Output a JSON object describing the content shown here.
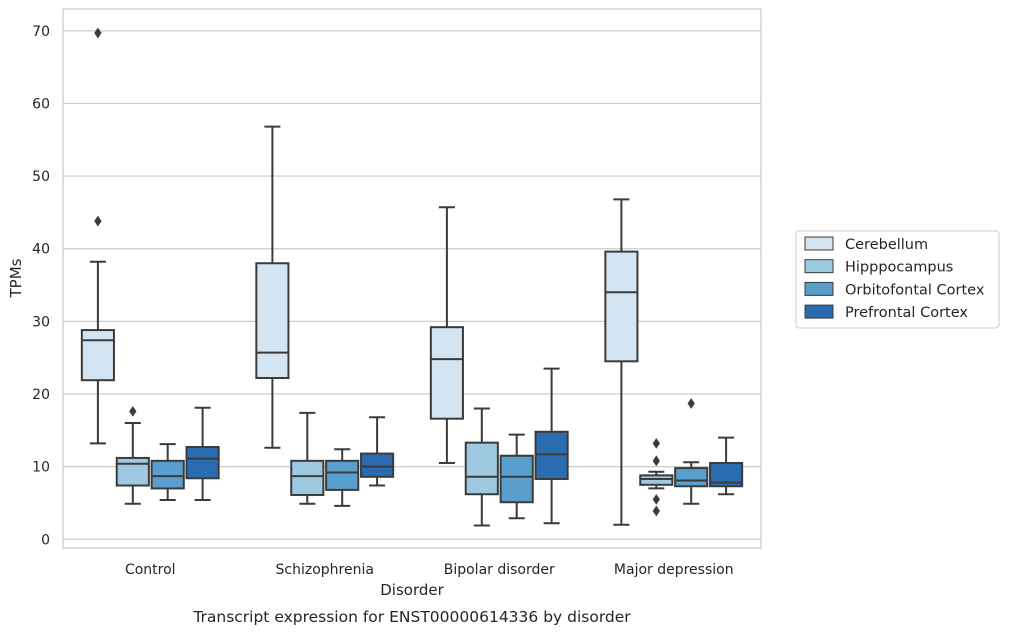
{
  "chart_data": {
    "type": "box",
    "xlabel": "Disorder",
    "ylabel": "TPMs",
    "caption": "Transcript expression for ENST00000614336 by disorder",
    "ylim": [
      -1.2,
      73
    ],
    "yticks": [
      "0",
      "10",
      "20",
      "30",
      "40",
      "50",
      "60",
      "70"
    ],
    "grid": "horizontal",
    "legend_position": "right",
    "categories": [
      "Control",
      "Schizophrenia",
      "Bipolar disorder",
      "Major depression"
    ],
    "series": [
      {
        "name": "Cerebellum",
        "color": "#d3e4f3",
        "boxes": [
          {
            "whislo": 13.2,
            "q1": 21.9,
            "med": 27.4,
            "q3": 28.8,
            "whishi": 38.2,
            "fliers": [
              43.8,
              69.7
            ]
          },
          {
            "whislo": 12.6,
            "q1": 22.2,
            "med": 25.7,
            "q3": 38.0,
            "whishi": 56.8,
            "fliers": []
          },
          {
            "whislo": 10.5,
            "q1": 16.6,
            "med": 24.8,
            "q3": 29.2,
            "whishi": 45.7,
            "fliers": []
          },
          {
            "whislo": 2.0,
            "q1": 24.5,
            "med": 34.0,
            "q3": 39.6,
            "whishi": 46.8,
            "fliers": []
          }
        ]
      },
      {
        "name": "Hipppocampus",
        "color": "#9ecae1",
        "boxes": [
          {
            "whislo": 4.9,
            "q1": 7.4,
            "med": 10.4,
            "q3": 11.2,
            "whishi": 16.0,
            "fliers": [
              17.6
            ]
          },
          {
            "whislo": 4.9,
            "q1": 6.1,
            "med": 8.7,
            "q3": 10.8,
            "whishi": 17.4,
            "fliers": []
          },
          {
            "whislo": 1.9,
            "q1": 6.2,
            "med": 8.6,
            "q3": 13.3,
            "whishi": 18.0,
            "fliers": []
          },
          {
            "whislo": 7.0,
            "q1": 7.5,
            "med": 8.3,
            "q3": 8.8,
            "whishi": 9.3,
            "fliers": [
              13.2,
              10.8,
              5.5,
              3.9
            ]
          }
        ]
      },
      {
        "name": "Orbitofontal Cortex",
        "color": "#5a9ecd",
        "boxes": [
          {
            "whislo": 5.4,
            "q1": 7.0,
            "med": 8.7,
            "q3": 10.8,
            "whishi": 13.1,
            "fliers": []
          },
          {
            "whislo": 4.6,
            "q1": 6.8,
            "med": 9.2,
            "q3": 10.8,
            "whishi": 12.4,
            "fliers": []
          },
          {
            "whislo": 2.9,
            "q1": 5.1,
            "med": 8.6,
            "q3": 11.5,
            "whishi": 14.4,
            "fliers": []
          },
          {
            "whislo": 4.9,
            "q1": 7.3,
            "med": 8.1,
            "q3": 9.8,
            "whishi": 10.6,
            "fliers": [
              18.7
            ]
          }
        ]
      },
      {
        "name": "Prefrontal Cortex",
        "color": "#2a6cb0",
        "boxes": [
          {
            "whislo": 5.4,
            "q1": 8.4,
            "med": 11.1,
            "q3": 12.7,
            "whishi": 18.1,
            "fliers": []
          },
          {
            "whislo": 7.4,
            "q1": 8.6,
            "med": 10.0,
            "q3": 11.8,
            "whishi": 16.8,
            "fliers": []
          },
          {
            "whislo": 2.2,
            "q1": 8.3,
            "med": 11.7,
            "q3": 14.8,
            "whishi": 23.5,
            "fliers": []
          },
          {
            "whislo": 6.2,
            "q1": 7.3,
            "med": 7.8,
            "q3": 10.5,
            "whishi": 14.0,
            "fliers": []
          }
        ]
      }
    ]
  }
}
